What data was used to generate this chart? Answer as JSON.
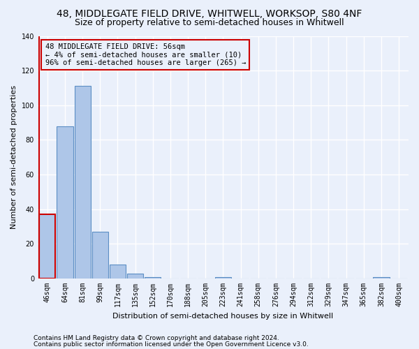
{
  "title1": "48, MIDDLEGATE FIELD DRIVE, WHITWELL, WORKSOP, S80 4NF",
  "title2": "Size of property relative to semi-detached houses in Whitwell",
  "xlabel": "Distribution of semi-detached houses by size in Whitwell",
  "ylabel": "Number of semi-detached properties",
  "footnote1": "Contains HM Land Registry data © Crown copyright and database right 2024.",
  "footnote2": "Contains public sector information licensed under the Open Government Licence v3.0.",
  "annotation_line1": "48 MIDDLEGATE FIELD DRIVE: 56sqm",
  "annotation_line2": "← 4% of semi-detached houses are smaller (10)",
  "annotation_line3": "96% of semi-detached houses are larger (265) →",
  "bin_labels": [
    "46sqm",
    "64sqm",
    "81sqm",
    "99sqm",
    "117sqm",
    "135sqm",
    "152sqm",
    "170sqm",
    "188sqm",
    "205sqm",
    "223sqm",
    "241sqm",
    "258sqm",
    "276sqm",
    "294sqm",
    "312sqm",
    "329sqm",
    "347sqm",
    "365sqm",
    "382sqm",
    "400sqm"
  ],
  "bar_values": [
    37,
    88,
    111,
    27,
    8,
    3,
    1,
    0,
    0,
    0,
    1,
    0,
    0,
    0,
    0,
    0,
    0,
    0,
    0,
    1,
    0
  ],
  "bar_color": "#aec6e8",
  "bar_edge_color": "#5b8ec4",
  "highlight_bar_index": 0,
  "highlight_edge_color": "#cc0000",
  "annotation_box_edge_color": "#cc0000",
  "ylim": [
    0,
    140
  ],
  "yticks": [
    0,
    20,
    40,
    60,
    80,
    100,
    120,
    140
  ],
  "bg_color": "#eaf0fb",
  "plot_bg_color": "#eaf0fb",
  "grid_color": "#ffffff",
  "title1_fontsize": 10,
  "title2_fontsize": 9,
  "axis_label_fontsize": 8,
  "tick_fontsize": 7,
  "annotation_fontsize": 7.5,
  "footnote_fontsize": 6.5
}
